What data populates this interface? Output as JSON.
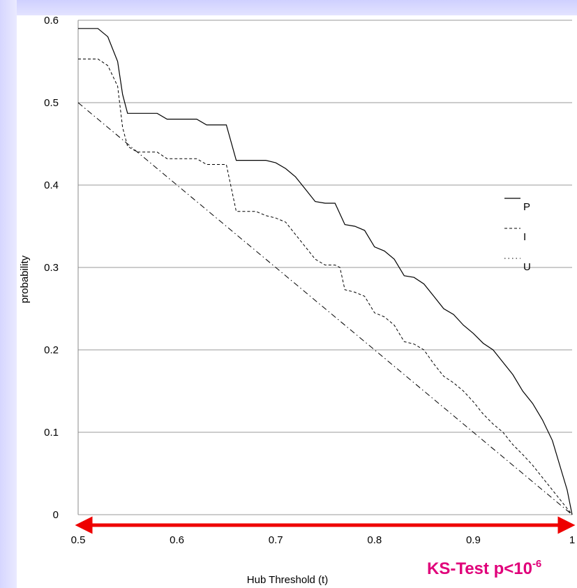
{
  "chart_data": {
    "type": "line",
    "xlabel": "Hub Threshold (t)",
    "ylabel": "probability",
    "xlim": [
      0.5,
      1.0
    ],
    "ylim": [
      0,
      0.6
    ],
    "x_ticks": [
      "0.5",
      "0.6",
      "0.7",
      "0.8",
      "0.9",
      "1"
    ],
    "y_ticks": [
      "0",
      "0.1",
      "0.2",
      "0.3",
      "0.4",
      "0.5",
      "0.6"
    ],
    "grid": "horizontal",
    "legend": "right",
    "series": [
      {
        "name": "P",
        "style": "solid",
        "x": [
          0.5,
          0.51,
          0.52,
          0.53,
          0.54,
          0.545,
          0.55,
          0.56,
          0.58,
          0.59,
          0.62,
          0.63,
          0.64,
          0.65,
          0.66,
          0.69,
          0.7,
          0.71,
          0.72,
          0.73,
          0.74,
          0.75,
          0.76,
          0.77,
          0.78,
          0.79,
          0.8,
          0.81,
          0.82,
          0.83,
          0.84,
          0.85,
          0.86,
          0.87,
          0.88,
          0.89,
          0.9,
          0.91,
          0.92,
          0.93,
          0.94,
          0.95,
          0.96,
          0.97,
          0.98,
          0.99,
          0.995,
          1.0
        ],
        "values": [
          0.59,
          0.59,
          0.59,
          0.58,
          0.55,
          0.51,
          0.487,
          0.487,
          0.487,
          0.48,
          0.48,
          0.473,
          0.473,
          0.473,
          0.43,
          0.43,
          0.427,
          0.42,
          0.41,
          0.395,
          0.38,
          0.378,
          0.378,
          0.352,
          0.35,
          0.345,
          0.325,
          0.32,
          0.31,
          0.29,
          0.288,
          0.28,
          0.265,
          0.25,
          0.243,
          0.23,
          0.22,
          0.208,
          0.2,
          0.185,
          0.17,
          0.15,
          0.135,
          0.115,
          0.09,
          0.05,
          0.03,
          0.0
        ]
      },
      {
        "name": "I",
        "style": "dashed",
        "x": [
          0.5,
          0.51,
          0.52,
          0.53,
          0.54,
          0.545,
          0.55,
          0.56,
          0.58,
          0.59,
          0.62,
          0.63,
          0.65,
          0.66,
          0.68,
          0.69,
          0.7,
          0.71,
          0.72,
          0.73,
          0.74,
          0.75,
          0.76,
          0.765,
          0.77,
          0.78,
          0.79,
          0.8,
          0.81,
          0.82,
          0.83,
          0.84,
          0.85,
          0.86,
          0.87,
          0.88,
          0.89,
          0.9,
          0.91,
          0.92,
          0.93,
          0.94,
          0.95,
          0.96,
          0.97,
          0.98,
          0.99,
          1.0
        ],
        "values": [
          0.553,
          0.553,
          0.553,
          0.545,
          0.52,
          0.47,
          0.447,
          0.44,
          0.44,
          0.432,
          0.432,
          0.425,
          0.425,
          0.368,
          0.368,
          0.363,
          0.36,
          0.355,
          0.34,
          0.325,
          0.31,
          0.303,
          0.303,
          0.3,
          0.273,
          0.27,
          0.265,
          0.245,
          0.24,
          0.23,
          0.21,
          0.207,
          0.2,
          0.183,
          0.168,
          0.16,
          0.15,
          0.137,
          0.122,
          0.11,
          0.1,
          0.085,
          0.073,
          0.06,
          0.045,
          0.03,
          0.015,
          0.0
        ]
      },
      {
        "name": "U",
        "style": "dashdot",
        "x": [
          0.5,
          1.0
        ],
        "values": [
          0.5,
          0.0
        ]
      }
    ]
  },
  "annotation": {
    "text_main": "KS-Test p<10",
    "text_sup": "-6",
    "color": "#e0007a",
    "arrow_color": "#ee0000",
    "arrow_from": 0.5,
    "arrow_to": 1.0
  }
}
